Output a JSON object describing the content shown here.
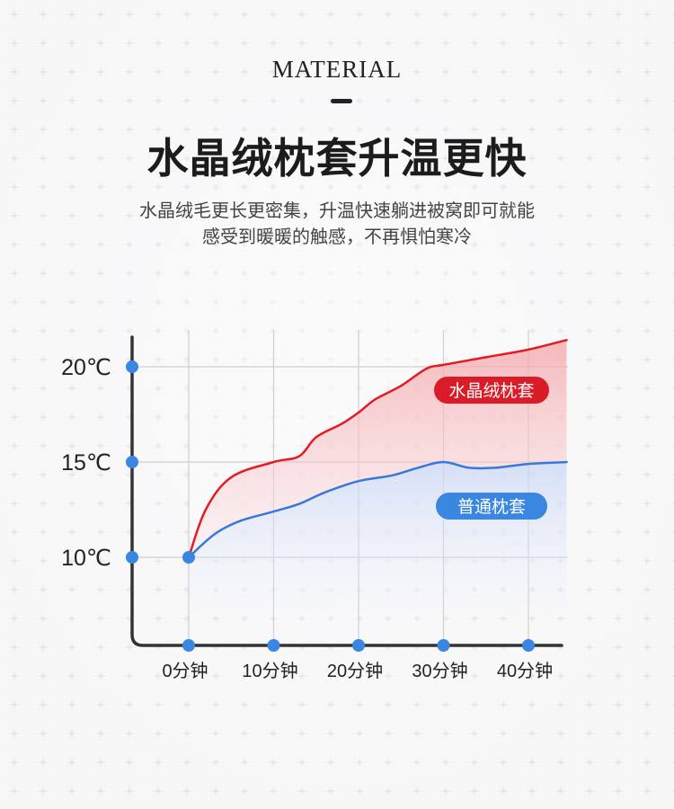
{
  "header": {
    "eyebrow": "MATERIAL",
    "title": "水晶绒枕套升温更快",
    "desc_line1": "水晶绒毛更长更密集，升温快速躺进被窝即可就能",
    "desc_line2": "感受到暖暖的触感，不再惧怕寒冷"
  },
  "chart_data": {
    "type": "line",
    "title": "",
    "xlabel": "",
    "ylabel": "",
    "categories": [
      "0分钟",
      "10分钟",
      "20分钟",
      "30分钟",
      "40分钟"
    ],
    "y_ticks": [
      "10℃",
      "15℃",
      "20℃"
    ],
    "ylim": [
      10,
      20
    ],
    "grid": true,
    "series": [
      {
        "name": "水晶绒枕套",
        "color": "#e31b23",
        "x": [
          0,
          2,
          5,
          10,
          13,
          15,
          18,
          20,
          22,
          25,
          28,
          30,
          35,
          40,
          44.5
        ],
        "values": [
          10,
          12.5,
          14.2,
          15,
          15.3,
          16.3,
          17,
          17.6,
          18.3,
          19,
          19.9,
          20.1,
          20.5,
          20.9,
          21.4
        ]
      },
      {
        "name": "普通枕套",
        "color": "#3a78d8",
        "x": [
          0,
          3,
          6,
          10,
          13,
          16,
          20,
          24,
          27,
          30,
          33,
          36,
          40,
          44.5
        ],
        "values": [
          10,
          11.2,
          11.9,
          12.4,
          12.8,
          13.4,
          14,
          14.3,
          14.7,
          15,
          14.7,
          14.7,
          14.9,
          15
        ]
      }
    ],
    "legend_placement": "inline-labels"
  }
}
